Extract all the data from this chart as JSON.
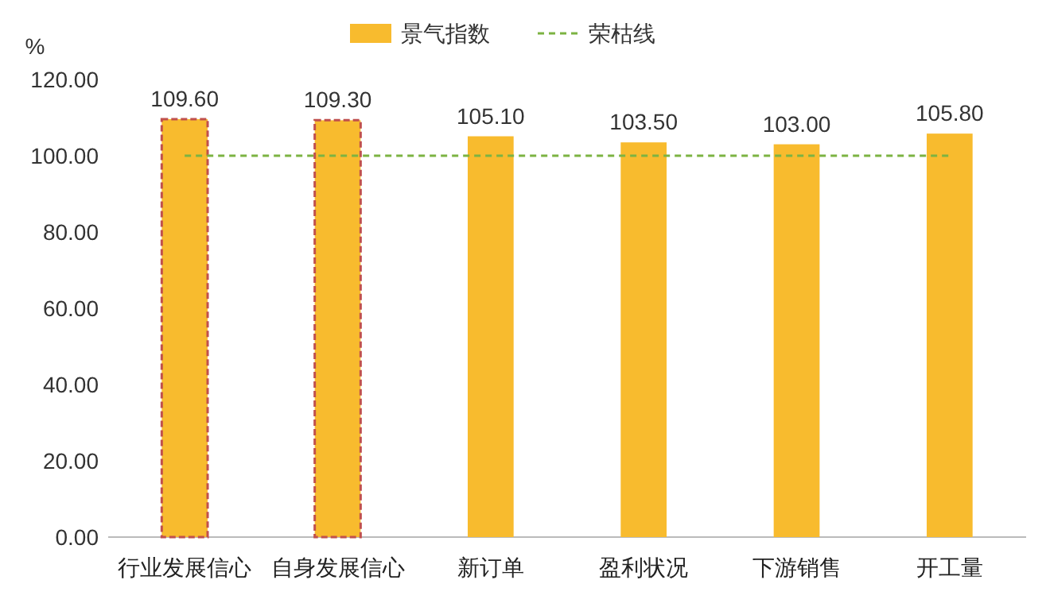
{
  "chart_data": {
    "type": "bar",
    "ylabel": "%",
    "categories": [
      "行业发展信心",
      "自身发展信心",
      "新订单",
      "盈利状况",
      "下游销售",
      "开工量"
    ],
    "series": [
      {
        "name": "景气指数",
        "color": "#f8bb2e",
        "values": [
          109.6,
          109.3,
          105.1,
          103.5,
          103.0,
          105.8
        ]
      }
    ],
    "value_labels": [
      "109.60",
      "109.30",
      "105.10",
      "103.50",
      "103.00",
      "105.80"
    ],
    "ref_lines": [
      {
        "axis": "y",
        "value": 100,
        "label": "荣枯线",
        "color": "#7cb342",
        "line_style": "dashed"
      }
    ],
    "ylim": [
      0,
      120
    ],
    "yticks": [
      {
        "value": 0,
        "label": "0.00"
      },
      {
        "value": 20,
        "label": "20.00"
      },
      {
        "value": 40,
        "label": "40.00"
      },
      {
        "value": 60,
        "label": "60.00"
      },
      {
        "value": 80,
        "label": "80.00"
      },
      {
        "value": 100,
        "label": "100.00"
      },
      {
        "value": 120,
        "label": "120.00"
      }
    ],
    "legend": "top",
    "grid": false
  }
}
